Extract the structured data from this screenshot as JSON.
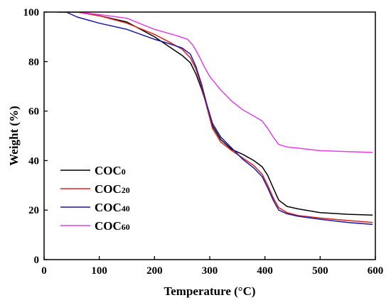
{
  "chart_data": {
    "type": "line",
    "title": "",
    "xlabel": "Temperature (°C)",
    "ylabel": "Weight (%)",
    "xlim": [
      0,
      600
    ],
    "ylim": [
      0,
      100
    ],
    "xticks": [
      0,
      100,
      200,
      300,
      400,
      500,
      600
    ],
    "yticks": [
      0,
      20,
      40,
      60,
      80,
      100
    ],
    "grid": false,
    "legend_position": "bottom-left",
    "series": [
      {
        "name": "COC0",
        "name_main": "COC",
        "name_sub": "0",
        "color": "#000000",
        "x": [
          25,
          60,
          100,
          150,
          200,
          230,
          250,
          265,
          275,
          285,
          295,
          305,
          320,
          340,
          360,
          380,
          395,
          405,
          415,
          425,
          440,
          460,
          500,
          550,
          595
        ],
        "y": [
          100,
          100,
          98.5,
          96,
          90,
          85.5,
          82.5,
          79.5,
          75,
          69,
          62,
          54,
          48.5,
          44.5,
          42.5,
          40,
          37.5,
          34,
          29,
          24,
          21.5,
          20.5,
          19,
          18.3,
          18
        ]
      },
      {
        "name": "COC20",
        "name_main": "COC",
        "name_sub": "20",
        "color": "#e0201b",
        "x": [
          25,
          60,
          100,
          150,
          200,
          230,
          250,
          265,
          275,
          285,
          295,
          305,
          320,
          340,
          360,
          380,
          395,
          405,
          415,
          425,
          440,
          460,
          500,
          550,
          595
        ],
        "y": [
          100,
          100,
          98.5,
          95.5,
          91,
          87.5,
          85,
          81.5,
          77,
          70,
          61.5,
          53,
          47.5,
          44,
          41,
          38,
          34.5,
          30,
          25,
          21,
          19,
          17.8,
          16.8,
          15.8,
          15
        ]
      },
      {
        "name": "COC40",
        "name_main": "COC",
        "name_sub": "40",
        "color": "#1a17a8",
        "x": [
          25,
          40,
          60,
          100,
          150,
          200,
          230,
          250,
          265,
          275,
          285,
          295,
          305,
          320,
          340,
          360,
          380,
          395,
          405,
          415,
          425,
          440,
          460,
          500,
          550,
          595
        ],
        "y": [
          100,
          100,
          98,
          95.5,
          93,
          89,
          87,
          85.5,
          83,
          78,
          71,
          62.5,
          55,
          49.5,
          45,
          40.5,
          37,
          33.5,
          29,
          24,
          20,
          18.5,
          17.5,
          16.3,
          15,
          14.2
        ]
      },
      {
        "name": "COC60",
        "name_main": "COC",
        "name_sub": "60",
        "color": "#e040e6",
        "x": [
          25,
          60,
          100,
          150,
          200,
          240,
          260,
          270,
          280,
          290,
          300,
          320,
          340,
          360,
          380,
          395,
          405,
          415,
          425,
          440,
          460,
          500,
          550,
          595
        ],
        "y": [
          100,
          100,
          99,
          97.5,
          93,
          90.5,
          89,
          86.5,
          82.5,
          78,
          74,
          68.5,
          64,
          60.5,
          58,
          56,
          53,
          49.5,
          46.5,
          45.5,
          45,
          44,
          43.6,
          43.3
        ]
      }
    ]
  }
}
